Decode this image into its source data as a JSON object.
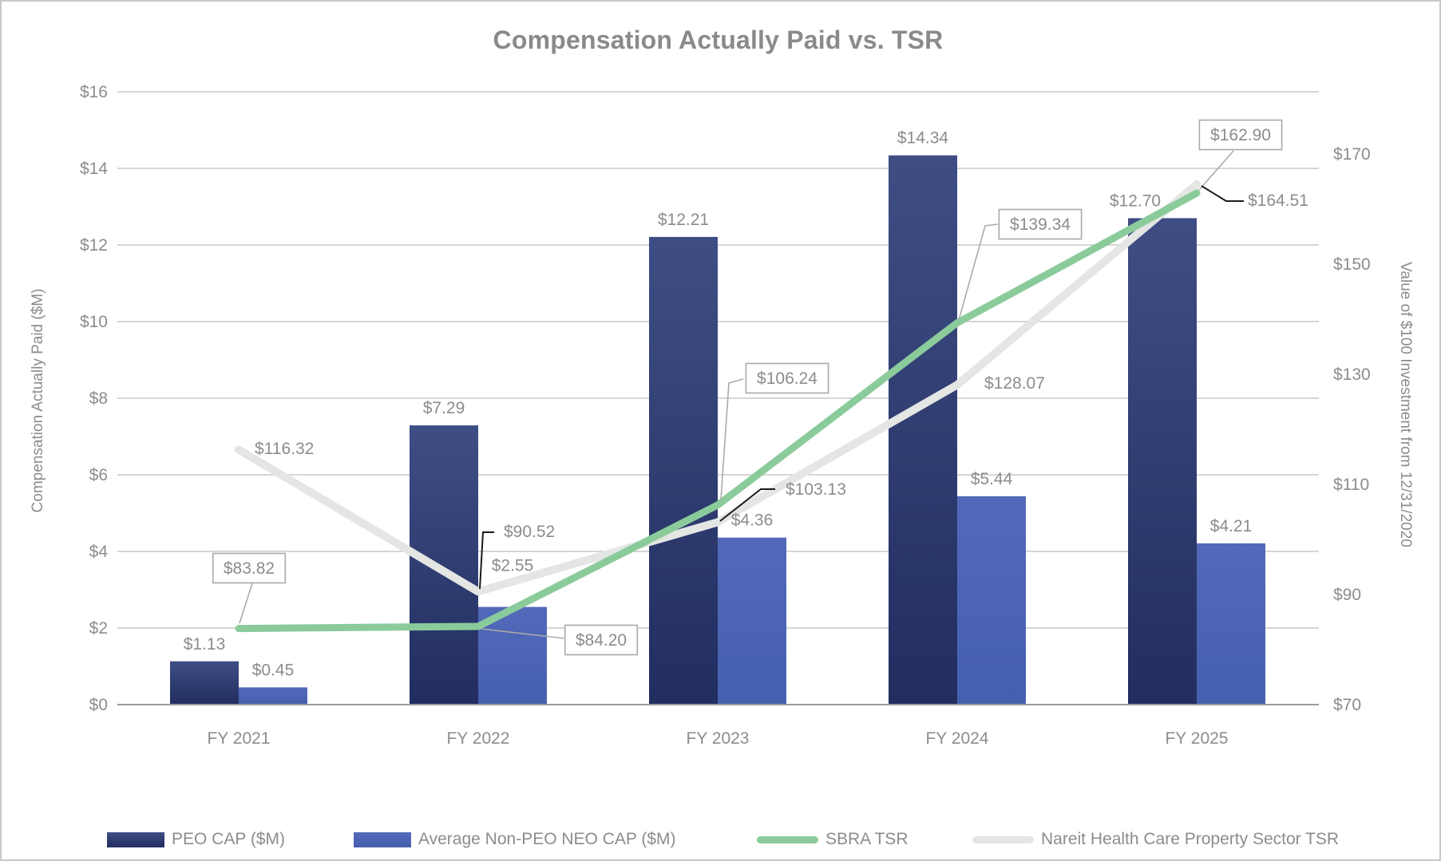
{
  "title": "Compensation Actually Paid vs. TSR",
  "chart_data": {
    "type": "combo-bar-line",
    "categories": [
      "FY 2021",
      "FY 2022",
      "FY 2023",
      "FY 2024",
      "FY 2025"
    ],
    "left_axis": {
      "title": "Compensation Actually Paid ($M)",
      "min": 0,
      "max": 16,
      "tick_step": 2,
      "tick_values": [
        0,
        2,
        4,
        6,
        8,
        10,
        12,
        14,
        16
      ],
      "tick_labels": [
        "$0",
        "$2",
        "$4",
        "$6",
        "$8",
        "$10",
        "$12",
        "$14",
        "$16"
      ]
    },
    "right_axis": {
      "title": "Value of $100 Investment from 12/31/2020",
      "min": 70,
      "max": 170,
      "tick_step": 20,
      "tick_values": [
        70,
        90,
        110,
        130,
        150,
        170
      ],
      "tick_labels": [
        "$70",
        "$90",
        "$110",
        "$130",
        "$150",
        "$170"
      ]
    },
    "grid": "horizontal",
    "legend_position": "bottom",
    "series": [
      {
        "name": "PEO CAP ($M)",
        "type": "bar",
        "axis": "left",
        "values": [
          1.13,
          7.29,
          12.21,
          14.34,
          12.7
        ],
        "point_labels": [
          "$1.13",
          "$7.29",
          "$12.21",
          "$14.34",
          "$12.70"
        ],
        "color": {
          "top": "#3E4E84",
          "bottom": "#222D60"
        }
      },
      {
        "name": "Average Non-PEO NEO CAP ($M)",
        "type": "bar",
        "axis": "left",
        "values": [
          0.45,
          2.55,
          4.36,
          5.44,
          4.21
        ],
        "point_labels": [
          "$0.45",
          "$2.55",
          "$4.36",
          "$5.44",
          "$4.21"
        ],
        "color": {
          "top": "#5269B9",
          "bottom": "#4560AF"
        }
      },
      {
        "name": "SBRA TSR",
        "type": "line",
        "axis": "right",
        "values": [
          83.82,
          84.2,
          106.24,
          139.34,
          162.9
        ],
        "point_labels": [
          "$83.82",
          "$84.20",
          "$106.24",
          "$139.34",
          "$162.90"
        ],
        "color": "#8BCB9B",
        "point_label_style": "boxed"
      },
      {
        "name": "Nareit Health Care Property Sector TSR",
        "type": "line",
        "axis": "right",
        "values": [
          116.32,
          90.52,
          103.13,
          128.07,
          164.51
        ],
        "point_labels": [
          "$116.32",
          "$90.52",
          "$103.13",
          "$128.07",
          "$164.51"
        ],
        "color": "#E4E6E3",
        "point_label_style": "plain"
      }
    ],
    "colors": {
      "grid": "#C8C8C8",
      "axis_line": "#9B9B9B",
      "text": "#8C8C8C",
      "callout_border": "#A9A9A9",
      "callout_fill": "#FFFFFF",
      "leader_gray": "#ABABAB",
      "leader_black": "#1A1A1A",
      "background": "#FFFFFF",
      "frame_border": "#C9C9C9"
    }
  }
}
